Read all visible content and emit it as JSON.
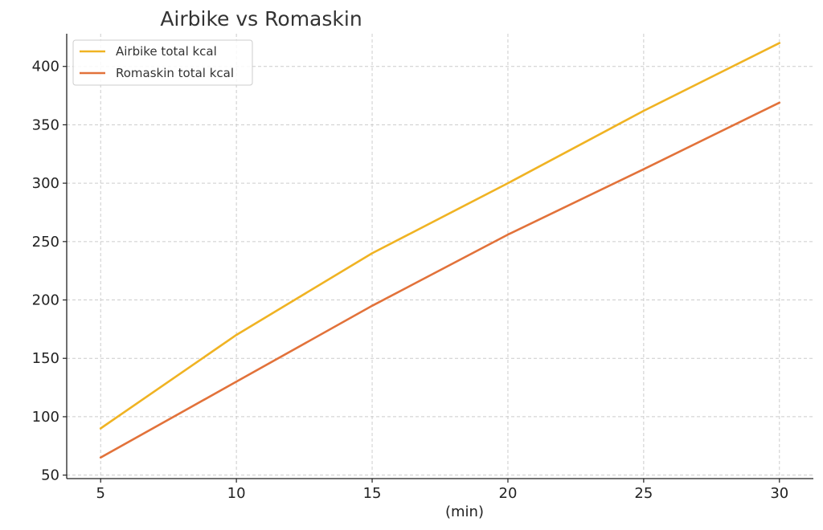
{
  "chart_data": {
    "type": "line",
    "title": "Airbike vs Romaskin",
    "xlabel": "(min)",
    "ylabel": "",
    "x": [
      5,
      10,
      15,
      20,
      25,
      30
    ],
    "xticks": [
      5,
      10,
      15,
      20,
      25,
      30
    ],
    "yticks": [
      50,
      100,
      150,
      200,
      250,
      300,
      350,
      400
    ],
    "xlim": [
      3.75,
      31.25
    ],
    "ylim": [
      47,
      428
    ],
    "grid": true,
    "legend_position": "top-left",
    "series": [
      {
        "name": "Airbike total kcal",
        "color": "#f0b323",
        "values": [
          90,
          170,
          240,
          300,
          362,
          420
        ]
      },
      {
        "name": "Romaskin total kcal",
        "color": "#e2723a",
        "values": [
          65,
          130,
          195,
          256,
          312,
          369
        ]
      }
    ]
  }
}
